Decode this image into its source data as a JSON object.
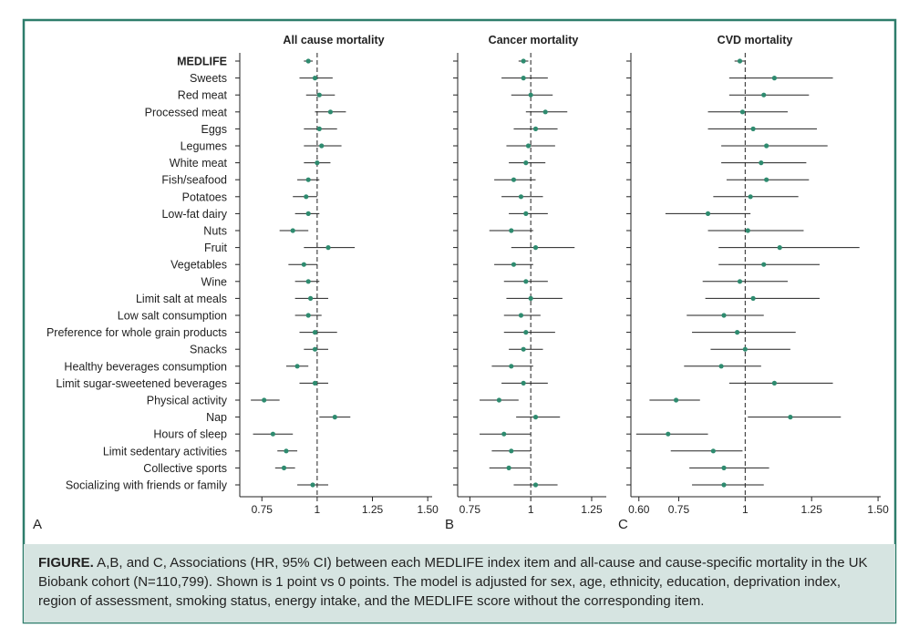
{
  "figure": {
    "caption_label": "FIGURE.",
    "caption_text": " A,B, and C, Associations (HR, 95% CI) between each MEDLIFE index item and all-cause and cause-specific mortality in the UK Biobank cohort (N=110,799). Shown is 1 point vs 0 points. The model is adjusted for sex, age, ethnicity, education, deprivation index, region of assessment, smoking status, energy intake, and the MEDLIFE score without the corresponding item.",
    "colors": {
      "border": "#2e7d6b",
      "caption_bg": "#d6e4e1",
      "point": "#2e8b6f",
      "line": "#222222"
    }
  },
  "items": [
    "MEDLIFE",
    "Sweets",
    "Red meat",
    "Processed meat",
    "Eggs",
    "Legumes",
    "White meat",
    "Fish/seafood",
    "Potatoes",
    "Low-fat dairy",
    "Nuts",
    "Fruit",
    "Vegetables",
    "Wine",
    "Limit salt at meals",
    "Low salt consumption",
    "Preference for whole grain products",
    "Snacks",
    "Healthy beverages consumption",
    "Limit sugar-sweetened beverages",
    "Physical activity",
    "Nap",
    "Hours of sleep",
    "Limit sedentary activities",
    "Collective sports",
    "Socializing with friends or family"
  ],
  "chart_data": [
    {
      "type": "forest",
      "panel_label": "A",
      "title": "All cause mortality",
      "xlim": [
        0.65,
        1.52
      ],
      "xticks": [
        0.75,
        1,
        1.25,
        1.5
      ],
      "xtick_labels": [
        "0.75",
        "1",
        "1.25",
        "1.50"
      ],
      "reference": 1,
      "hr": [
        0.96,
        0.99,
        1.01,
        1.06,
        1.01,
        1.02,
        1.0,
        0.96,
        0.95,
        0.96,
        0.89,
        1.05,
        0.94,
        0.96,
        0.97,
        0.96,
        0.99,
        0.99,
        0.91,
        0.99,
        0.76,
        1.08,
        0.8,
        0.86,
        0.85,
        0.98
      ],
      "lower": [
        0.94,
        0.92,
        0.95,
        0.99,
        0.94,
        0.94,
        0.94,
        0.91,
        0.89,
        0.9,
        0.83,
        0.94,
        0.87,
        0.9,
        0.9,
        0.9,
        0.92,
        0.94,
        0.86,
        0.92,
        0.7,
        1.01,
        0.71,
        0.82,
        0.81,
        0.91
      ],
      "upper": [
        0.98,
        1.07,
        1.08,
        1.13,
        1.09,
        1.11,
        1.06,
        1.01,
        1.0,
        1.01,
        0.96,
        1.17,
        1.0,
        1.01,
        1.05,
        1.02,
        1.09,
        1.05,
        0.96,
        1.05,
        0.83,
        1.15,
        0.89,
        0.91,
        0.9,
        1.05
      ]
    },
    {
      "type": "forest",
      "panel_label": "B",
      "title": "Cancer mortality",
      "xlim": [
        0.7,
        1.31
      ],
      "xticks": [
        0.75,
        1,
        1.25
      ],
      "xtick_labels": [
        "0.75",
        "1",
        "1.25"
      ],
      "reference": 1,
      "hr": [
        0.97,
        0.97,
        1.0,
        1.06,
        1.02,
        0.99,
        0.98,
        0.93,
        0.96,
        0.98,
        0.92,
        1.02,
        0.93,
        0.98,
        1.0,
        0.96,
        0.98,
        0.97,
        0.92,
        0.97,
        0.87,
        1.02,
        0.89,
        0.92,
        0.91,
        1.02
      ],
      "lower": [
        0.95,
        0.88,
        0.92,
        0.98,
        0.93,
        0.9,
        0.91,
        0.85,
        0.88,
        0.91,
        0.83,
        0.92,
        0.85,
        0.89,
        0.9,
        0.89,
        0.89,
        0.91,
        0.84,
        0.88,
        0.79,
        0.94,
        0.79,
        0.84,
        0.83,
        0.93
      ],
      "upper": [
        0.99,
        1.07,
        1.09,
        1.15,
        1.11,
        1.1,
        1.06,
        1.02,
        1.05,
        1.07,
        1.01,
        1.18,
        1.01,
        1.07,
        1.13,
        1.04,
        1.1,
        1.05,
        1.01,
        1.07,
        0.95,
        1.12,
        1.0,
        1.0,
        1.0,
        1.11
      ]
    },
    {
      "type": "forest",
      "panel_label": "C",
      "title": "CVD mortality",
      "xlim": [
        0.57,
        1.51
      ],
      "xticks": [
        0.6,
        0.75,
        1,
        1.25,
        1.5
      ],
      "xtick_labels": [
        "0.60",
        "0.75",
        "1",
        "1.25",
        "1.50"
      ],
      "reference": 1,
      "hr": [
        0.98,
        1.11,
        1.07,
        0.99,
        1.03,
        1.08,
        1.06,
        1.08,
        1.02,
        0.86,
        1.01,
        1.13,
        1.07,
        0.98,
        1.03,
        0.92,
        0.97,
        1.0,
        0.91,
        1.11,
        0.74,
        1.17,
        0.71,
        0.88,
        0.92,
        0.92
      ],
      "lower": [
        0.96,
        0.94,
        0.94,
        0.86,
        0.86,
        0.91,
        0.91,
        0.93,
        0.88,
        0.7,
        0.86,
        0.9,
        0.9,
        0.84,
        0.85,
        0.78,
        0.8,
        0.87,
        0.77,
        0.94,
        0.64,
        1.01,
        0.59,
        0.72,
        0.79,
        0.8
      ],
      "upper": [
        1.0,
        1.33,
        1.24,
        1.16,
        1.27,
        1.31,
        1.23,
        1.24,
        1.2,
        1.02,
        1.22,
        1.43,
        1.28,
        1.16,
        1.28,
        1.07,
        1.19,
        1.17,
        1.06,
        1.33,
        0.83,
        1.36,
        0.86,
        0.99,
        1.09,
        1.07
      ]
    }
  ]
}
